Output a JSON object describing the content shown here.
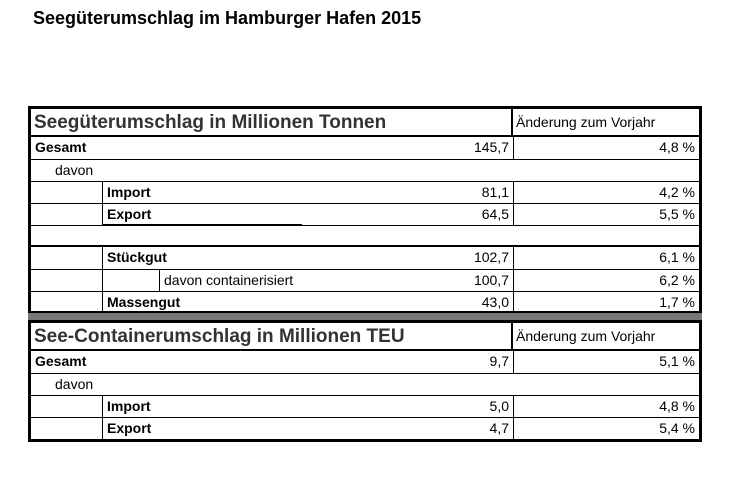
{
  "title": "Seegüterumschlag im Hamburger Hafen 2015",
  "table1": {
    "header": "Seegüterumschlag in Millionen Tonnen",
    "change_header": "Änderung zum Vorjahr",
    "rows": [
      {
        "label": "Gesamt",
        "value": "145,7",
        "change": "4,8 %"
      },
      {
        "label": "davon",
        "value": "",
        "change": ""
      },
      {
        "label": "Import",
        "value": "81,1",
        "change": "4,2 %"
      },
      {
        "label": "Export",
        "value": "64,5",
        "change": "5,5 %"
      },
      {
        "label": "",
        "value": "",
        "change": ""
      },
      {
        "label": "Stückgut",
        "value": "102,7",
        "change": "6,1 %"
      },
      {
        "label": "davon containerisiert",
        "value": "100,7",
        "change": "6,2 %"
      },
      {
        "label": "Massengut",
        "value": "43,0",
        "change": "1,7 %"
      }
    ]
  },
  "table2": {
    "header": "See-Containerumschlag in Millionen TEU",
    "change_header": "Änderung zum Vorjahr",
    "rows": [
      {
        "label": "Gesamt",
        "value": "9,7",
        "change": "5,1 %"
      },
      {
        "label": "davon",
        "value": "",
        "change": ""
      },
      {
        "label": "Import",
        "value": "5,0",
        "change": "4,8 %"
      },
      {
        "label": "Export",
        "value": "4,7",
        "change": "5,4 %"
      }
    ]
  }
}
